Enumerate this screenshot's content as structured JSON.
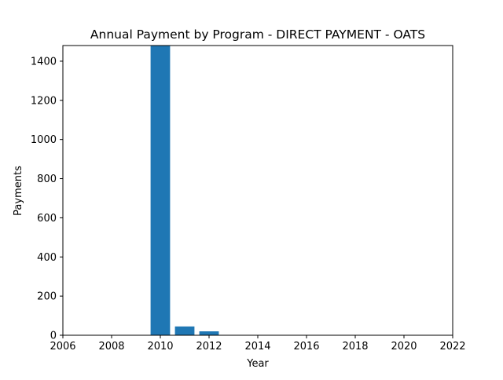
{
  "chart_data": {
    "type": "bar",
    "title": "Annual Payment by Program - DIRECT PAYMENT - OATS",
    "xlabel": "Year",
    "ylabel": "Payments",
    "x": [
      2010,
      2011,
      2012
    ],
    "values": [
      1480,
      45,
      20
    ],
    "bar_width": 0.8,
    "xlim": [
      2006,
      2022
    ],
    "ylim": [
      0,
      1480
    ],
    "xticks": [
      2006,
      2008,
      2010,
      2012,
      2014,
      2016,
      2018,
      2020,
      2022
    ],
    "yticks": [
      0,
      200,
      400,
      600,
      800,
      1000,
      1200,
      1400
    ],
    "bar_color": "#1f77b4",
    "grid": false,
    "legend": "none"
  }
}
